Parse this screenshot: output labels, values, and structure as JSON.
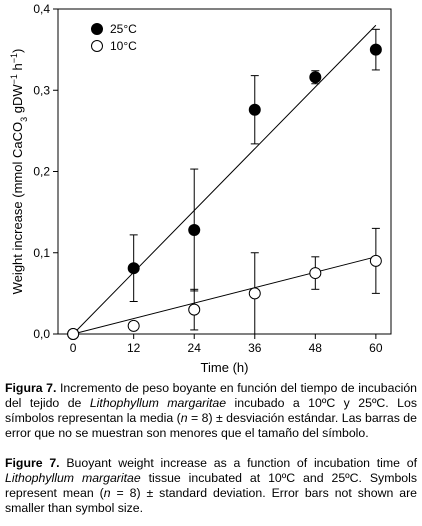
{
  "chart_data": {
    "type": "scatter",
    "xlabel": "Time (h)",
    "ylabel_parts": [
      "Weight increase (mmol CaCO",
      "3",
      " gDW",
      "−1",
      " h",
      "−1",
      ")"
    ],
    "x_ticks": [
      0,
      12,
      24,
      36,
      48,
      60
    ],
    "x_tick_labels": [
      "0",
      "12",
      "24",
      "36",
      "48",
      "60"
    ],
    "y_ticks": [
      0,
      0.1,
      0.2,
      0.3,
      0.4
    ],
    "y_tick_labels": [
      "0,0",
      "0,1",
      "0,2",
      "0,3",
      "0,4"
    ],
    "xlim": [
      -3,
      63
    ],
    "ylim": [
      0,
      0.4
    ],
    "grid": false,
    "legend_position": "top-left",
    "series": [
      {
        "name": "25°C",
        "marker": "filled-circle",
        "color": "#000000",
        "x": [
          0,
          12,
          24,
          36,
          48,
          60
        ],
        "y": [
          0,
          0.081,
          0.128,
          0.276,
          0.316,
          0.35
        ],
        "err": [
          0,
          0.041,
          0.075,
          0.042,
          0.008,
          0.025
        ],
        "fit": {
          "x0": 0,
          "y0": 0,
          "x1": 60,
          "y1": 0.38
        }
      },
      {
        "name": "10°C",
        "marker": "open-circle",
        "color": "#000000",
        "x": [
          0,
          12,
          24,
          36,
          48,
          60
        ],
        "y": [
          0,
          0.01,
          0.03,
          0.05,
          0.075,
          0.09
        ],
        "err": [
          0,
          0,
          0.025,
          0.05,
          0.02,
          0.04
        ],
        "fit": {
          "x0": 0,
          "y0": 0,
          "x1": 60,
          "y1": 0.095
        }
      }
    ]
  },
  "caption_es": {
    "label": "Figura 7.",
    "text_1": " Incremento de peso boyante en función del tiempo de incubación del tejido de ",
    "species": "Lithophyllum margaritae",
    "text_2": " incubado a 10ºC y 25ºC. Los símbolos representan la media (",
    "n_var": "n",
    "text_3": " = 8) ± desviación estándar. Las barras de error que no se muestran son menores que el tamaño del símbolo."
  },
  "caption_en": {
    "label": "Figure 7.",
    "text_1": " Buoyant weight increase as a function of incubation time of ",
    "species": "Lithophyllum margaritae",
    "text_2": " tissue incubated at 10ºC and 25ºC. Symbols represent mean (",
    "n_var": "n",
    "text_3": " = 8) ± standard deviation. Error bars not shown are smaller than symbol size."
  }
}
